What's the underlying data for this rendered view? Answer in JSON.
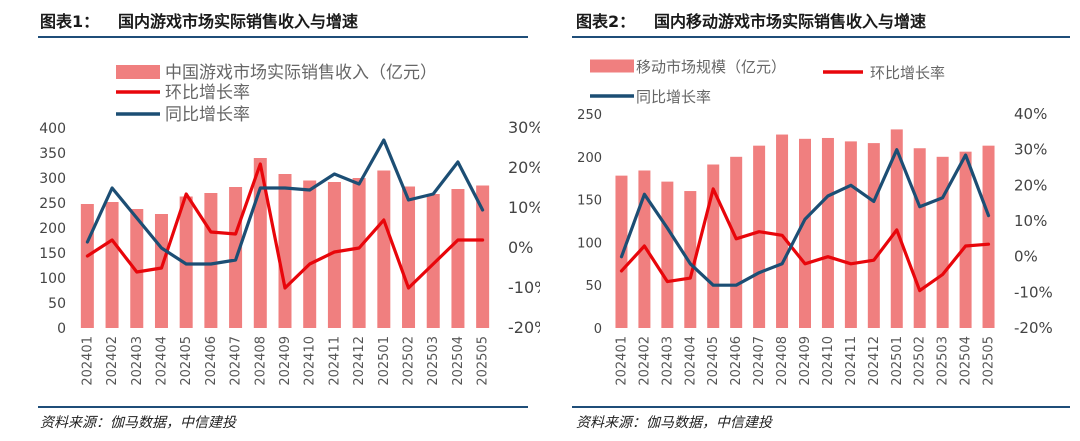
{
  "charts": [
    {
      "title_num": "图表1：",
      "title_text": "国内游戏市场实际销售收入与增速",
      "source": "资料来源：伽马数据，中信建投"
    },
    {
      "title_num": "图表2：",
      "title_text": "国内移动游戏市场实际销售收入与增速",
      "source": "资料来源：伽马数据，中信建投"
    }
  ],
  "colors": {
    "bar": "#f07f7f",
    "mom": "#e8060b",
    "yoy": "#1c4e74",
    "rule": "#1f4e79"
  },
  "chart_data": [
    {
      "type": "bar",
      "categories": [
        "202401",
        "202402",
        "202403",
        "202404",
        "202405",
        "202406",
        "202407",
        "202408",
        "202409",
        "202410",
        "202411",
        "202412",
        "202501",
        "202502",
        "202503",
        "202504",
        "202505"
      ],
      "series": [
        {
          "name": "中国游戏市场实际销售收入（亿元）",
          "type": "bar",
          "axis": "left",
          "values": [
            248,
            252,
            238,
            228,
            263,
            270,
            282,
            340,
            308,
            295,
            292,
            300,
            315,
            283,
            268,
            278,
            285
          ]
        },
        {
          "name": "环比增长率",
          "type": "line",
          "axis": "right",
          "values": [
            -2,
            2,
            -6,
            -5,
            13.5,
            4,
            3.5,
            21,
            -10,
            -4,
            -1,
            0,
            7,
            -10,
            -4,
            2,
            2
          ]
        },
        {
          "name": "同比增长率",
          "type": "line",
          "axis": "right",
          "values": [
            1.5,
            15,
            7.5,
            0,
            -4,
            -4,
            -3,
            15,
            15,
            14.5,
            18.5,
            16,
            27,
            12,
            13.5,
            21.5,
            9.5
          ]
        }
      ],
      "ylim_left": [
        0,
        400
      ],
      "yticks_left": [
        "0",
        "50",
        "100",
        "150",
        "200",
        "250",
        "300",
        "350",
        "400"
      ],
      "ylim_right": [
        -20,
        30
      ],
      "yticks_right": [
        "-20%",
        "-10%",
        "0%",
        "10%",
        "20%",
        "30%"
      ],
      "legend_position": "top"
    },
    {
      "type": "bar",
      "categories": [
        "202401",
        "202402",
        "202403",
        "202404",
        "202405",
        "202406",
        "202407",
        "202408",
        "202409",
        "202410",
        "202411",
        "202412",
        "202501",
        "202502",
        "202503",
        "202504",
        "202505"
      ],
      "series": [
        {
          "name": "移动市场规模（亿元）",
          "type": "bar",
          "axis": "left",
          "values": [
            178,
            184,
            171,
            160,
            191,
            200,
            213,
            226,
            221,
            222,
            218,
            216,
            232,
            210,
            200,
            206,
            213
          ]
        },
        {
          "name": "环比增长率",
          "type": "line",
          "axis": "right",
          "values": [
            -4,
            3,
            -7,
            -6,
            19,
            5,
            7,
            6,
            -2,
            0,
            -2,
            -1,
            7.5,
            -9.5,
            -5,
            3,
            3.5
          ]
        },
        {
          "name": "同比增长率",
          "type": "line",
          "axis": "right",
          "values": [
            0,
            17.5,
            8,
            -2,
            -8,
            -8,
            -4.5,
            -2,
            10.5,
            17,
            20,
            15.5,
            30,
            14,
            16.5,
            28.5,
            11.5
          ]
        }
      ],
      "ylim_left": [
        0,
        250
      ],
      "yticks_left": [
        "0",
        "50",
        "100",
        "150",
        "200",
        "250"
      ],
      "ylim_right": [
        -20,
        40
      ],
      "yticks_right": [
        "-20%",
        "-10%",
        "0%",
        "10%",
        "20%",
        "30%",
        "40%"
      ],
      "legend_position": "top"
    }
  ]
}
